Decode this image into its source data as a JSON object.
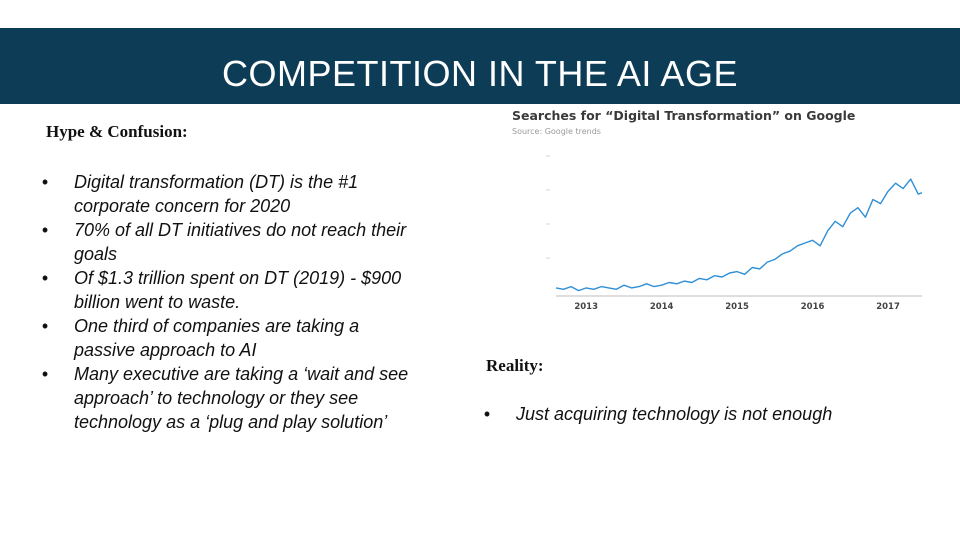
{
  "slide": {
    "title": "COMPETITION IN THE AI AGE",
    "left": {
      "heading": "Hype & Confusion:",
      "bullets": [
        "Digital transformation (DT) is the #1 corporate concern for 2020",
        "70% of all DT initiatives do not reach their goals",
        "Of $1.3 trillion spent on DT (2019) - $900 billion went to waste.",
        "One third of companies are taking a passive approach to AI",
        "Many executive are taking a ‘wait and see approach’ to technology or they see technology as a ‘plug and play solution’"
      ]
    },
    "right": {
      "heading": "Reality:",
      "bullets": [
        "Just acquiring technology is not enough"
      ]
    },
    "bullet_char": "•"
  },
  "chart_data": {
    "type": "line",
    "title": "Searches for “Digital Transformation” on Google",
    "subtitle": "Source: Google trends",
    "x_tick_labels": [
      "2013",
      "2014",
      "2015",
      "2016",
      "2017"
    ],
    "y_tick_labels": [
      "",
      "",
      "",
      ""
    ],
    "grid": false,
    "series_color": "#2f8fd6",
    "xlim": [
      2012.6,
      2017.45
    ],
    "ylim": [
      0,
      100
    ],
    "series": [
      {
        "x": [
          2012.6,
          2012.7,
          2012.8,
          2012.9,
          2013.0,
          2013.1,
          2013.2,
          2013.3,
          2013.4,
          2013.5,
          2013.6,
          2013.7,
          2013.8,
          2013.9,
          2014.0,
          2014.1,
          2014.2,
          2014.3,
          2014.4,
          2014.5,
          2014.6,
          2014.7,
          2014.8,
          2014.9,
          2015.0,
          2015.1,
          2015.2,
          2015.3,
          2015.4,
          2015.5,
          2015.6,
          2015.7,
          2015.8,
          2015.9,
          2016.0,
          2016.1,
          2016.2,
          2016.3,
          2016.4,
          2016.5,
          2016.6,
          2016.7,
          2016.8,
          2016.9,
          2017.0,
          2017.1,
          2017.2,
          2017.3,
          2017.4,
          2017.45
        ],
        "y": [
          3,
          2,
          4,
          1,
          3,
          2,
          4,
          3,
          2,
          5,
          3,
          4,
          6,
          4,
          5,
          7,
          6,
          8,
          7,
          10,
          9,
          12,
          11,
          14,
          15,
          13,
          18,
          17,
          22,
          24,
          28,
          30,
          34,
          36,
          38,
          34,
          45,
          52,
          48,
          58,
          62,
          55,
          68,
          65,
          74,
          80,
          76,
          83,
          72,
          73
        ]
      }
    ]
  }
}
